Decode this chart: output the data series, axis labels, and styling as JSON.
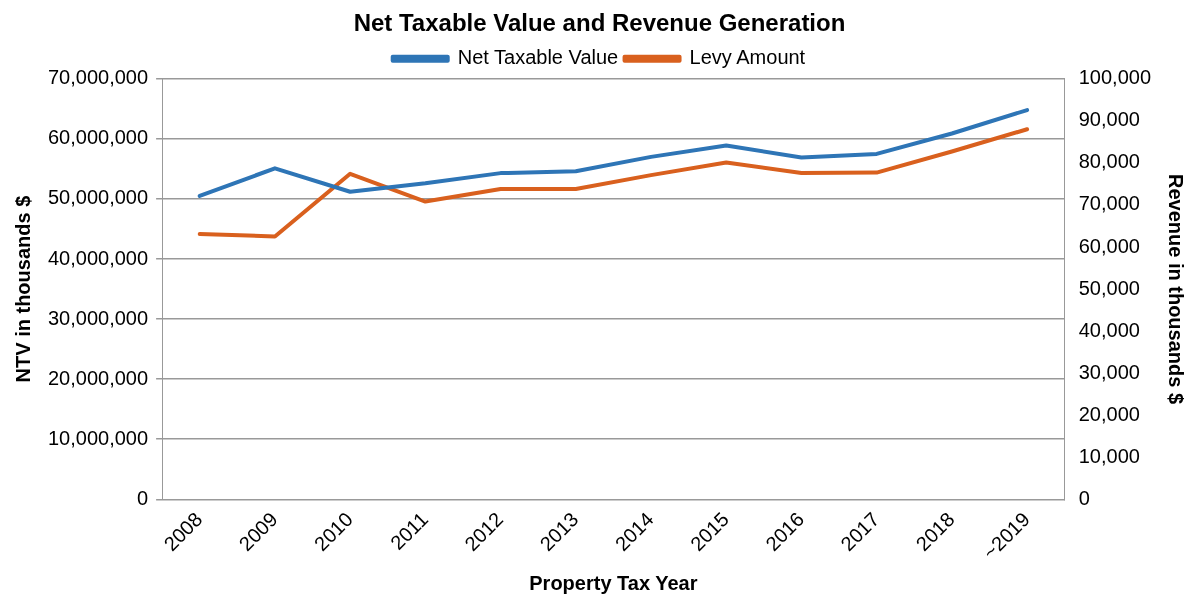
{
  "chart_data": {
    "type": "line",
    "title": "Net Taxable Value and Revenue Generation",
    "xlabel": "Property Tax Year",
    "ylabel": "NTV in thousands $",
    "y2label": "Revenue in thousands $",
    "categories": [
      "2008",
      "2009",
      "2010",
      "2011",
      "2012",
      "2013",
      "2014",
      "2015",
      "2016",
      "2017",
      "2018",
      "~2019"
    ],
    "series": [
      {
        "name": "Net Taxable Value",
        "color": "#2e75b6",
        "values": [
          50500000,
          55100000,
          51200000,
          52600000,
          54300000,
          54600000,
          57000000,
          58900000,
          56900000,
          57500000,
          60900000,
          64800000
        ]
      },
      {
        "name": "Levy Amount",
        "color": "#d9601e",
        "axis": "y2",
        "values": [
          63100,
          62500,
          77400,
          70800,
          73800,
          73800,
          77100,
          80100,
          77600,
          77700,
          82700,
          88000
        ]
      }
    ],
    "ylim": [
      0,
      70000000
    ],
    "yticks": [
      0,
      {
        "value": 10000000,
        "label": "10,000,000"
      },
      {
        "value": 20000000,
        "label": "20,000,000"
      },
      {
        "value": 30000000,
        "label": "30,000,000"
      },
      {
        "value": 40000000,
        "label": "40,000,000"
      },
      {
        "value": 50000000,
        "label": "50,000,000"
      },
      {
        "value": 60000000,
        "label": "60,000,000"
      },
      {
        "value": 70000000,
        "label": "70,000,000"
      }
    ],
    "y2lim": [
      0,
      100000
    ],
    "y2ticks": [
      0,
      {
        "value": 10000,
        "label": "10,000"
      },
      {
        "value": 20000,
        "label": "20,000"
      },
      {
        "value": 30000,
        "label": "30,000"
      },
      {
        "value": 40000,
        "label": "40,000"
      },
      {
        "value": 50000,
        "label": "50,000"
      },
      {
        "value": 60000,
        "label": "60,000"
      },
      {
        "value": 70000,
        "label": "70,000"
      },
      {
        "value": 80000,
        "label": "80,000"
      },
      {
        "value": 90000,
        "label": "90,000"
      },
      {
        "value": 100000,
        "label": "100,000"
      }
    ],
    "grid": "y",
    "legend": "top",
    "marker": "none",
    "line_style": "solid"
  }
}
